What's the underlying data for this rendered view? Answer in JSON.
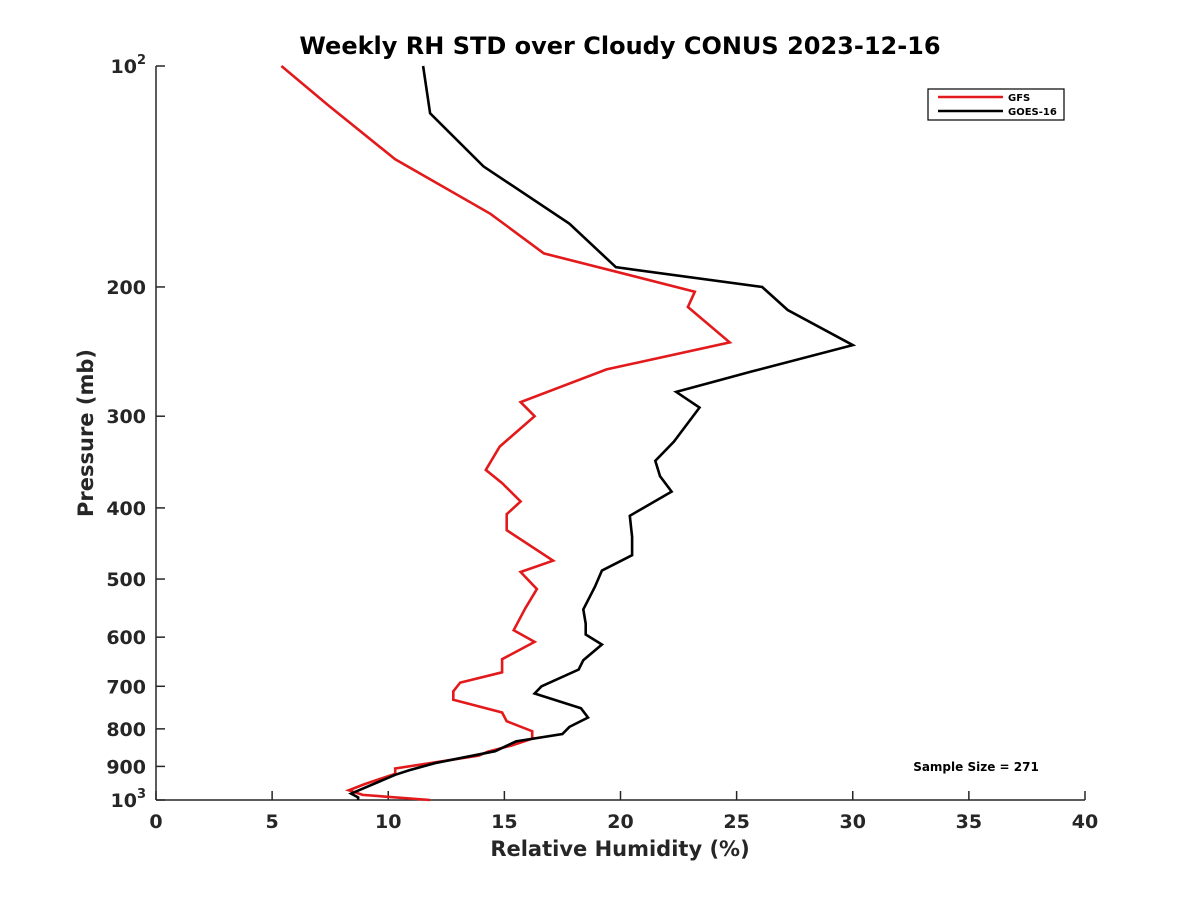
{
  "chart_data": {
    "type": "line",
    "title": "Weekly RH STD over Cloudy CONUS 2023-12-16",
    "xlabel": "Relative Humidity (%)",
    "ylabel": "Pressure (mb)",
    "xlim": [
      0,
      40
    ],
    "ylim": [
      100,
      1000
    ],
    "y_scale": "log",
    "y_reversed": true,
    "x_ticks": [
      0,
      5,
      10,
      15,
      20,
      25,
      30,
      35,
      40
    ],
    "x_tick_labels": [
      "0",
      "5",
      "10",
      "15",
      "20",
      "25",
      "30",
      "35",
      "40"
    ],
    "y_ticks": [
      {
        "value": 100,
        "base": "10",
        "exp": "2"
      },
      {
        "value": 200,
        "base": "200",
        "exp": ""
      },
      {
        "value": 300,
        "base": "300",
        "exp": ""
      },
      {
        "value": 400,
        "base": "400",
        "exp": ""
      },
      {
        "value": 500,
        "base": "500",
        "exp": ""
      },
      {
        "value": 600,
        "base": "600",
        "exp": ""
      },
      {
        "value": 700,
        "base": "700",
        "exp": ""
      },
      {
        "value": 800,
        "base": "800",
        "exp": ""
      },
      {
        "value": 900,
        "base": "900",
        "exp": ""
      },
      {
        "value": 1000,
        "base": "10",
        "exp": "3"
      }
    ],
    "grid": false,
    "legend_position": "top-right",
    "annotation": "Sample Size = 271",
    "series": [
      {
        "name": "GFS",
        "color": "#e31a1c",
        "x": [
          5.4,
          7.4,
          10.3,
          14.4,
          16.7,
          23.2,
          22.9,
          24.7,
          19.4,
          15.7,
          16.3,
          14.8,
          14.2,
          14.9,
          15.7,
          15.1,
          15.1,
          17.1,
          15.7,
          16.4,
          15.9,
          15.4,
          16.3,
          14.9,
          14.9,
          13.1,
          12.8,
          12.8,
          14.9,
          15.1,
          16.2,
          16.2,
          15.3,
          14.3,
          13.9,
          10.3,
          10.3,
          9.0,
          8.3,
          8.9,
          11.8
        ],
        "y": [
          100,
          113,
          134,
          159,
          180,
          203,
          213,
          238,
          259,
          287,
          300,
          330,
          355,
          370,
          392,
          408,
          429,
          472,
          489,
          516,
          548,
          587,
          609,
          643,
          670,
          692,
          711,
          730,
          760,
          781,
          806,
          825,
          843,
          859,
          870,
          906,
          921,
          951,
          970,
          984,
          1000
        ],
        "values": [
          5.4,
          7.4,
          10.3,
          14.4,
          16.7,
          23.2,
          22.9,
          24.7,
          19.4,
          15.7,
          16.3,
          14.8,
          14.2,
          14.9,
          15.7,
          15.1,
          15.1,
          17.1,
          15.7,
          16.4,
          15.9,
          15.4,
          16.3,
          14.9,
          14.9,
          13.1,
          12.8,
          12.8,
          14.9,
          15.1,
          16.2,
          16.2,
          15.3,
          14.3,
          13.9,
          10.3,
          10.3,
          9.0,
          8.3,
          8.9,
          11.8
        ]
      },
      {
        "name": "GOES-16",
        "color": "#000000",
        "x": [
          11.5,
          11.8,
          14.1,
          17.8,
          19.8,
          26.1,
          27.2,
          30.0,
          25.6,
          22.4,
          23.4,
          22.3,
          21.5,
          21.7,
          22.2,
          20.4,
          20.5,
          20.5,
          19.2,
          18.9,
          18.4,
          18.5,
          18.5,
          19.2,
          18.4,
          18.2,
          16.6,
          16.3,
          18.3,
          18.6,
          17.8,
          17.5,
          15.5,
          14.6,
          12.0,
          10.9,
          10.3,
          8.4,
          8.7,
          8.7
        ],
        "y": [
          100,
          116,
          137,
          164,
          188,
          200,
          215,
          240,
          261,
          278,
          292,
          325,
          345,
          362,
          380,
          410,
          438,
          464,
          487,
          512,
          550,
          575,
          595,
          614,
          645,
          664,
          700,
          716,
          750,
          772,
          795,
          813,
          832,
          858,
          891,
          911,
          924,
          980,
          992,
          1000
        ],
        "values": [
          11.5,
          11.8,
          14.1,
          17.8,
          19.8,
          26.1,
          27.2,
          30.0,
          25.6,
          22.4,
          23.4,
          22.3,
          21.5,
          21.7,
          22.2,
          20.4,
          20.5,
          20.5,
          19.2,
          18.9,
          18.4,
          18.5,
          18.5,
          19.2,
          18.4,
          18.2,
          16.6,
          16.3,
          18.3,
          18.6,
          17.8,
          17.5,
          15.5,
          14.6,
          12.0,
          10.9,
          10.3,
          8.4,
          8.7,
          8.7
        ]
      }
    ]
  }
}
